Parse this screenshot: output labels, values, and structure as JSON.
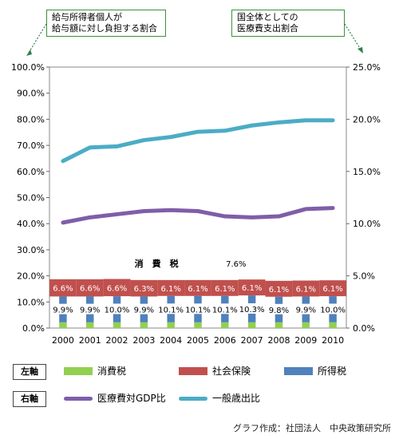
{
  "callouts": {
    "left": "給与所得者個人が\n給与額に対し負担する割合",
    "right": "国全体としての\n医療費支出割合"
  },
  "chart_data": {
    "type": "bar",
    "categories": [
      "2000",
      "2001",
      "2002",
      "2003",
      "2004",
      "2005",
      "2006",
      "2007",
      "2008",
      "2009",
      "2010"
    ],
    "left_axis": {
      "ylim": [
        0,
        100
      ],
      "ticks": [
        "0.0%",
        "10.0%",
        "20.0%",
        "30.0%",
        "40.0%",
        "50.0%",
        "60.0%",
        "70.0%",
        "80.0%",
        "90.0%",
        "100.0%"
      ]
    },
    "right_axis": {
      "ylim": [
        0,
        25
      ],
      "ticks": [
        "0.0%",
        "5.0%",
        "10.0%",
        "15.0%",
        "20.0%",
        "25.0%"
      ]
    },
    "stacked_series": [
      {
        "name": "消費税",
        "color": "#92d050",
        "values": [
          2.2,
          2.2,
          2.2,
          2.2,
          2.2,
          2.2,
          2.2,
          2.2,
          2.2,
          2.2,
          2.2
        ]
      },
      {
        "name": "所得税",
        "color": "#4f81bd",
        "values": [
          9.9,
          9.9,
          10.0,
          9.9,
          10.1,
          10.1,
          10.1,
          10.3,
          9.8,
          9.9,
          10.0
        ],
        "labels": [
          "9.9%",
          "9.9%",
          "10.0%",
          "9.9%",
          "10.1%",
          "10.1%",
          "10.1%",
          "10.3%",
          "9.8%",
          "9.9%",
          "10.0%"
        ]
      },
      {
        "name": "社会保険",
        "color": "#c0504d",
        "values": [
          6.6,
          6.6,
          6.6,
          6.3,
          6.1,
          6.1,
          6.1,
          6.1,
          6.1,
          6.1,
          6.1
        ],
        "labels": [
          "6.6%",
          "6.6%",
          "6.6%",
          "6.3%",
          "6.1%",
          "6.1%",
          "6.1%",
          "6.1%",
          "6.1%",
          "6.1%",
          "6.1%"
        ]
      }
    ],
    "annotation": {
      "label": "消　費　税",
      "value": "7.6%"
    },
    "line_series": [
      {
        "name": "医療費対GDP比",
        "color": "#7f5ea8",
        "values": [
          10.1,
          10.6,
          10.9,
          11.2,
          11.3,
          11.2,
          10.7,
          10.6,
          10.7,
          11.4,
          11.5
        ]
      },
      {
        "name": "一般歳出比",
        "color": "#4bacc6",
        "values": [
          16.0,
          17.3,
          17.4,
          18.0,
          18.3,
          18.8,
          18.9,
          19.4,
          19.7,
          19.9,
          19.9
        ]
      }
    ]
  },
  "legend": {
    "left_tag": "左軸",
    "right_tag": "右軸",
    "consumption": "消費税",
    "social": "社会保険",
    "income": "所得税",
    "medical_gdp": "医療費対GDP比",
    "general": "一般歳出比"
  },
  "source": "グラフ作成：社団法人　中央政策研究所"
}
